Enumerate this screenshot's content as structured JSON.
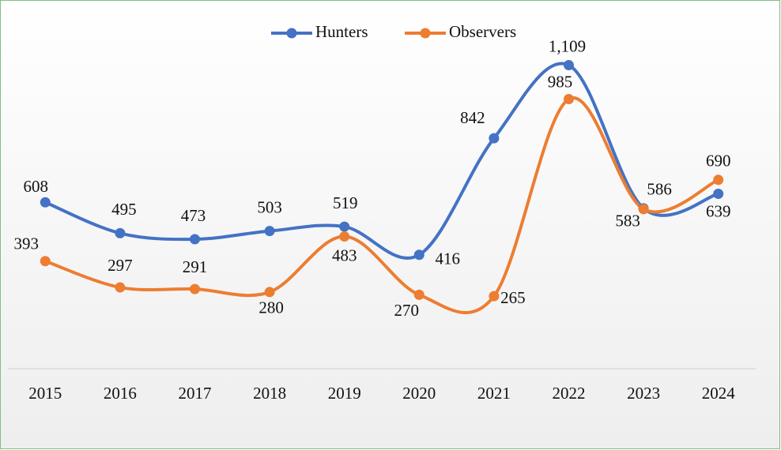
{
  "chart_data": {
    "type": "line",
    "categories": [
      "2015",
      "2016",
      "2017",
      "2018",
      "2019",
      "2020",
      "2021",
      "2022",
      "2023",
      "2024"
    ],
    "series": [
      {
        "name": "Hunters",
        "color": "#4472c4",
        "values": [
          608,
          495,
          473,
          503,
          519,
          416,
          842,
          1109,
          586,
          639
        ],
        "value_labels": [
          "608",
          "495",
          "473",
          "503",
          "519",
          "416",
          "842",
          "1,109",
          "586",
          "639"
        ]
      },
      {
        "name": "Observers",
        "color": "#ed7d31",
        "values": [
          393,
          297,
          291,
          280,
          483,
          270,
          265,
          985,
          583,
          690
        ],
        "value_labels": [
          "393",
          "297",
          "291",
          "280",
          "483",
          "270",
          "265",
          "985",
          "583",
          "690"
        ]
      }
    ],
    "ylim": [
      0,
      1200
    ],
    "legend": "top",
    "smooth": true
  }
}
